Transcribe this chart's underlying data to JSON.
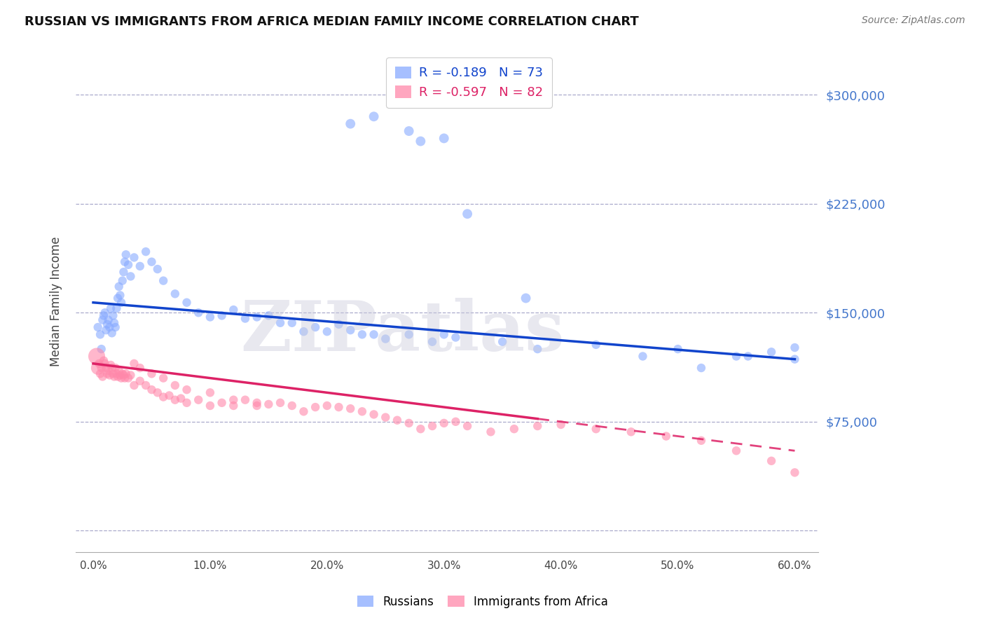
{
  "title": "RUSSIAN VS IMMIGRANTS FROM AFRICA MEDIAN FAMILY INCOME CORRELATION CHART",
  "source": "Source: ZipAtlas.com",
  "xlabel_vals": [
    0,
    10,
    20,
    30,
    40,
    50,
    60
  ],
  "ylabel": "Median Family Income",
  "ylabel_ticks": [
    0,
    75000,
    150000,
    225000,
    300000
  ],
  "ylabel_labels": [
    "",
    "$75,000",
    "$150,000",
    "$225,000",
    "$300,000"
  ],
  "ylim": [
    -15000,
    330000
  ],
  "xlim": [
    -1.5,
    62
  ],
  "legend1_text": "R = -0.189   N = 73",
  "legend2_text": "R = -0.597   N = 82",
  "series1_label": "Russians",
  "series2_label": "Immigrants from Africa",
  "series1_color": "#88aaff",
  "series2_color": "#ff88aa",
  "series1_line_color": "#1144cc",
  "series2_line_color": "#dd2266",
  "watermark": "ZIPatlas",
  "blue_line_x0": 0,
  "blue_line_y0": 157000,
  "blue_line_x1": 60,
  "blue_line_y1": 118000,
  "pink_line_x0": 0,
  "pink_line_y0": 115000,
  "pink_line_x1": 60,
  "pink_line_y1": 55000,
  "pink_solid_end": 38,
  "russians_x": [
    0.4,
    0.6,
    0.7,
    0.8,
    0.9,
    1.0,
    1.1,
    1.2,
    1.3,
    1.4,
    1.5,
    1.6,
    1.7,
    1.8,
    1.9,
    2.0,
    2.1,
    2.2,
    2.3,
    2.4,
    2.5,
    2.6,
    2.7,
    2.8,
    3.0,
    3.2,
    3.5,
    4.0,
    4.5,
    5.0,
    5.5,
    6.0,
    7.0,
    8.0,
    9.0,
    10.0,
    11.0,
    12.0,
    13.0,
    14.0,
    15.0,
    16.0,
    17.0,
    18.0,
    19.0,
    20.0,
    21.0,
    22.0,
    23.0,
    24.0,
    25.0,
    27.0,
    29.0,
    30.0,
    31.0,
    35.0,
    38.0,
    50.0,
    55.0,
    58.0,
    60.0,
    22.0,
    24.0,
    27.0,
    28.0,
    30.0,
    32.0,
    37.0,
    43.0,
    47.0,
    52.0,
    56.0,
    60.0
  ],
  "russians_y": [
    140000,
    135000,
    125000,
    145000,
    148000,
    150000,
    138000,
    142000,
    145000,
    140000,
    153000,
    136000,
    148000,
    143000,
    140000,
    153000,
    160000,
    168000,
    162000,
    157000,
    172000,
    178000,
    185000,
    190000,
    183000,
    175000,
    188000,
    182000,
    192000,
    185000,
    180000,
    172000,
    163000,
    157000,
    150000,
    147000,
    148000,
    152000,
    146000,
    147000,
    148000,
    143000,
    143000,
    137000,
    140000,
    137000,
    142000,
    138000,
    135000,
    135000,
    132000,
    135000,
    130000,
    135000,
    133000,
    130000,
    125000,
    125000,
    120000,
    123000,
    118000,
    280000,
    285000,
    275000,
    268000,
    270000,
    218000,
    160000,
    128000,
    120000,
    112000,
    120000,
    126000
  ],
  "russians_sizes": [
    80,
    80,
    80,
    80,
    80,
    80,
    80,
    80,
    80,
    80,
    80,
    80,
    80,
    80,
    80,
    80,
    80,
    80,
    80,
    80,
    80,
    80,
    80,
    80,
    80,
    80,
    80,
    80,
    80,
    80,
    80,
    80,
    80,
    80,
    80,
    80,
    80,
    80,
    80,
    80,
    80,
    80,
    80,
    80,
    80,
    80,
    80,
    80,
    80,
    80,
    80,
    80,
    80,
    80,
    80,
    80,
    80,
    80,
    80,
    80,
    80,
    100,
    100,
    100,
    100,
    100,
    100,
    100,
    80,
    80,
    80,
    80,
    80
  ],
  "africa_x": [
    0.3,
    0.4,
    0.5,
    0.6,
    0.7,
    0.8,
    0.9,
    1.0,
    1.1,
    1.2,
    1.3,
    1.4,
    1.5,
    1.6,
    1.7,
    1.8,
    1.9,
    2.0,
    2.1,
    2.2,
    2.3,
    2.4,
    2.5,
    2.6,
    2.7,
    2.8,
    3.0,
    3.2,
    3.5,
    4.0,
    4.5,
    5.0,
    5.5,
    6.0,
    6.5,
    7.0,
    7.5,
    8.0,
    9.0,
    10.0,
    11.0,
    12.0,
    13.0,
    14.0,
    15.0,
    16.0,
    17.0,
    18.0,
    19.0,
    20.0,
    21.0,
    22.0,
    23.0,
    24.0,
    25.0,
    26.0,
    27.0,
    28.0,
    29.0,
    30.0,
    31.0,
    32.0,
    34.0,
    36.0,
    38.0,
    40.0,
    43.0,
    46.0,
    49.0,
    52.0,
    55.0,
    58.0,
    60.0,
    3.5,
    4.0,
    5.0,
    6.0,
    7.0,
    8.0,
    10.0,
    12.0,
    14.0
  ],
  "africa_y": [
    120000,
    112000,
    115000,
    108000,
    112000,
    106000,
    117000,
    115000,
    112000,
    108000,
    110000,
    107000,
    114000,
    112000,
    108000,
    106000,
    112000,
    108000,
    106000,
    110000,
    107000,
    105000,
    108000,
    107000,
    105000,
    108000,
    105000,
    107000,
    100000,
    103000,
    100000,
    97000,
    95000,
    92000,
    93000,
    90000,
    91000,
    88000,
    90000,
    86000,
    88000,
    86000,
    90000,
    88000,
    87000,
    88000,
    86000,
    82000,
    85000,
    86000,
    85000,
    84000,
    82000,
    80000,
    78000,
    76000,
    74000,
    70000,
    72000,
    74000,
    75000,
    72000,
    68000,
    70000,
    72000,
    73000,
    70000,
    68000,
    65000,
    62000,
    55000,
    48000,
    40000,
    115000,
    112000,
    108000,
    105000,
    100000,
    97000,
    95000,
    90000,
    86000
  ],
  "africa_sizes": [
    300,
    200,
    80,
    80,
    80,
    80,
    80,
    80,
    80,
    80,
    80,
    80,
    80,
    80,
    80,
    80,
    80,
    80,
    80,
    80,
    80,
    80,
    80,
    80,
    80,
    80,
    80,
    80,
    80,
    80,
    80,
    80,
    80,
    80,
    80,
    80,
    80,
    80,
    80,
    80,
    80,
    80,
    80,
    80,
    80,
    80,
    80,
    80,
    80,
    80,
    80,
    80,
    80,
    80,
    80,
    80,
    80,
    80,
    80,
    80,
    80,
    80,
    80,
    80,
    80,
    80,
    80,
    80,
    80,
    80,
    80,
    80,
    80,
    80,
    80,
    80,
    80,
    80,
    80,
    80,
    80,
    80
  ]
}
